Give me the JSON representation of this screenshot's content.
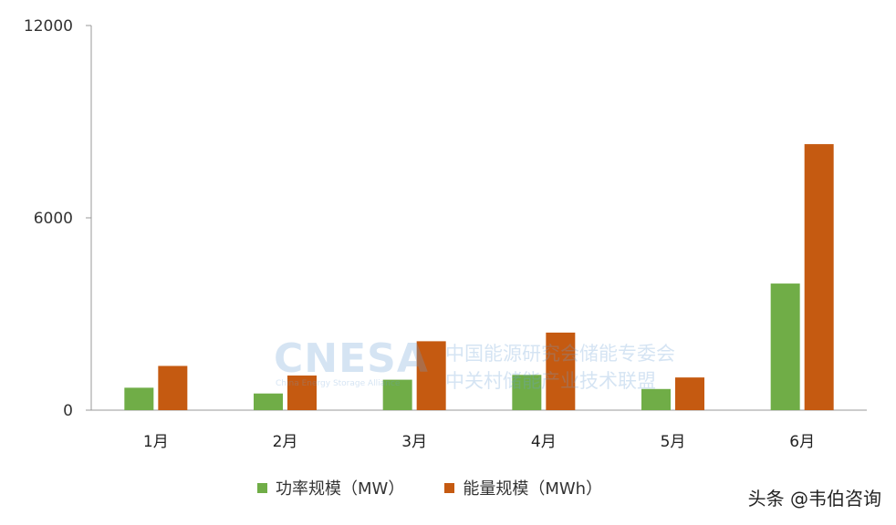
{
  "chart_data": {
    "type": "bar",
    "categories": [
      "1月",
      "2月",
      "3月",
      "4月",
      "5月",
      "6月"
    ],
    "series": [
      {
        "name": "功率规模（MW）",
        "color": "#70ad47",
        "values": [
          700,
          520,
          950,
          1100,
          660,
          3950
        ]
      },
      {
        "name": "能量规模（MWh）",
        "color": "#c55a11",
        "values": [
          1380,
          1080,
          2150,
          2420,
          1020,
          8300
        ]
      }
    ],
    "yticks": [
      0,
      6000,
      12000
    ],
    "ylim": [
      0,
      12000
    ],
    "grid": false,
    "legend_position": "bottom"
  },
  "watermark": {
    "logo": "CNESA",
    "subtitle": "China Energy Storage Alliance",
    "line1": "中国能源研究会储能专委会",
    "line2": "中关村储能产业技术联盟"
  },
  "credit": "头条 @韦伯咨询"
}
